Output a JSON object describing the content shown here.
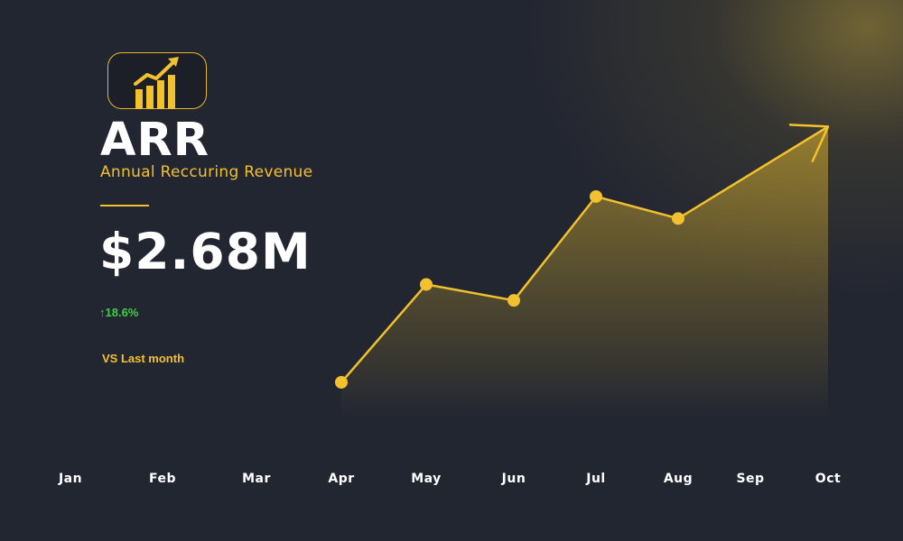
{
  "header": {
    "icon": "bar-chart-growth-icon",
    "title": "ARR",
    "subtitle": "Annual Reccuring Revenue"
  },
  "metric": {
    "value": "$2.68M",
    "change_arrow": "↑",
    "change": "18.6%",
    "comparison": "VS Last month"
  },
  "colors": {
    "background": "#222631",
    "accent": "#f2c12e",
    "positive": "#3fce45",
    "text": "#ffffff"
  },
  "chart_data": {
    "type": "area",
    "categories": [
      "Jan",
      "Feb",
      "Mar",
      "Apr",
      "May",
      "Jun",
      "Jul",
      "Aug",
      "Sep",
      "Oct"
    ],
    "series": [
      {
        "name": "",
        "x": [
          "Apr",
          "May",
          "Jun",
          "Jul",
          "Aug",
          "Oct"
        ],
        "values": [
          0.0,
          0.49,
          0.41,
          0.93,
          0.82,
          1.28
        ],
        "markers": [
          true,
          true,
          true,
          true,
          true,
          false
        ],
        "end_arrow": true
      }
    ],
    "ylim": [
      0,
      1.3
    ],
    "grid": false,
    "legend": "none",
    "xlabel": "",
    "ylabel": ""
  }
}
